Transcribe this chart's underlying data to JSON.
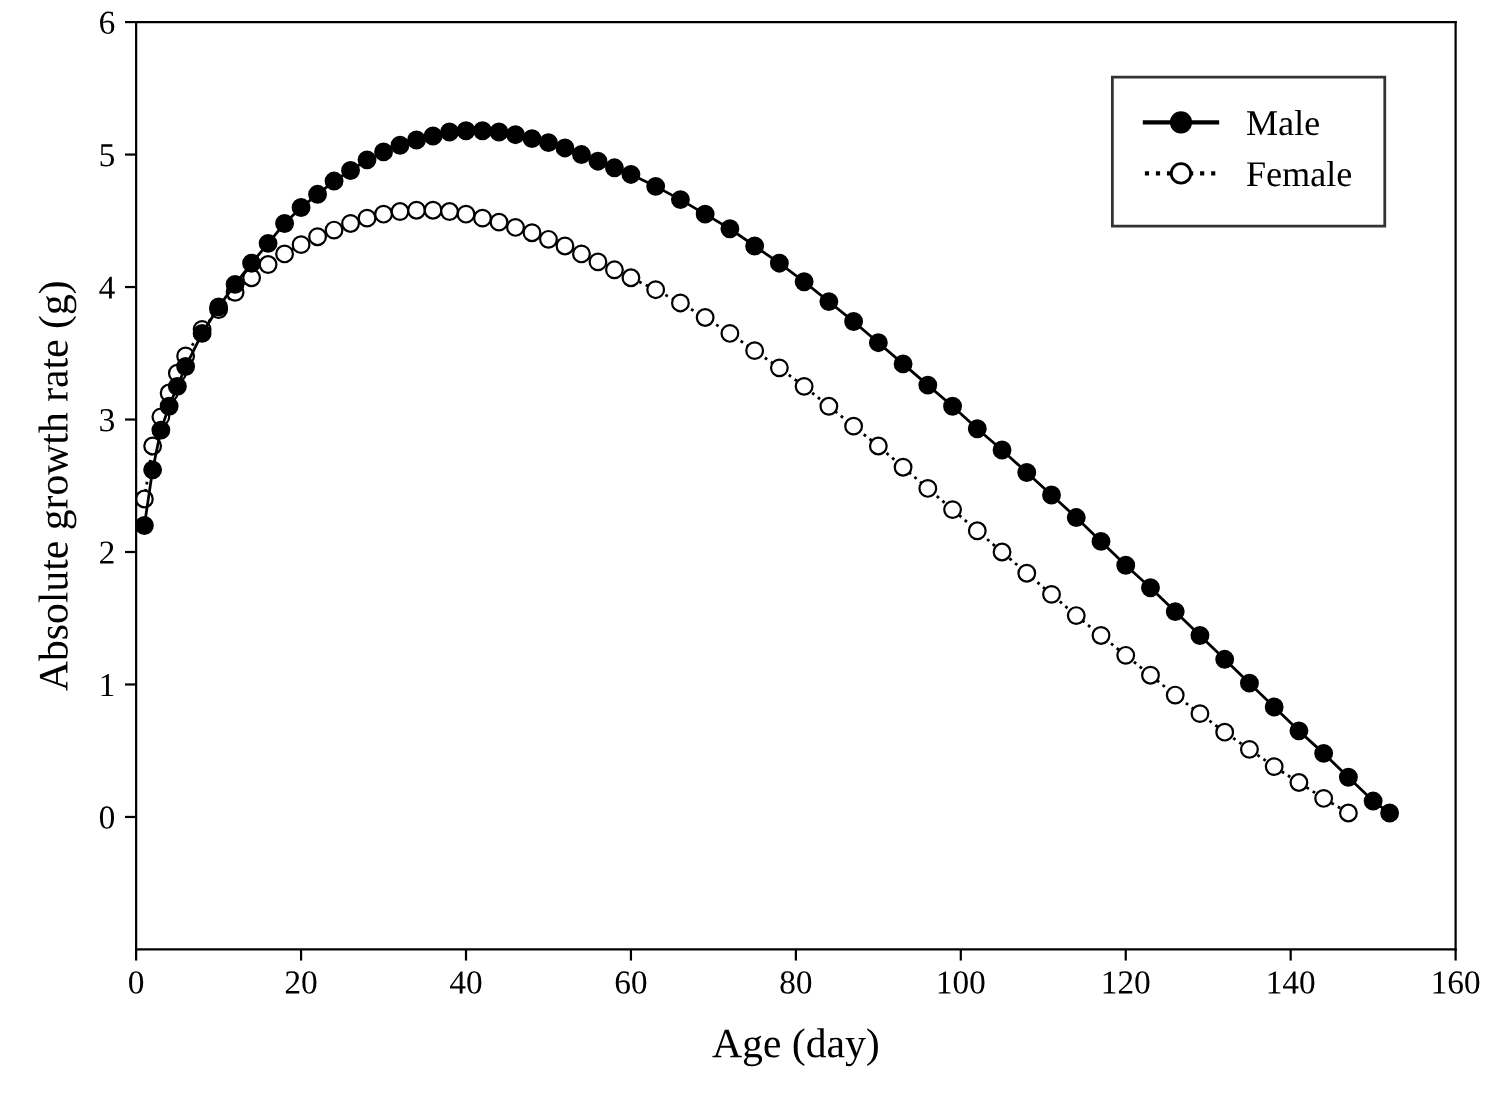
{
  "chart_data": {
    "type": "line",
    "xlabel": "Age (day)",
    "ylabel": "Absolute growth rate (g)",
    "xlim": [
      0,
      160
    ],
    "xticks": [
      0,
      20,
      40,
      60,
      80,
      100,
      120,
      140,
      160
    ],
    "ylim": [
      -1,
      6
    ],
    "yticks": [
      0,
      1,
      2,
      3,
      4,
      5,
      6
    ],
    "grid": false,
    "legend": "top right",
    "marker": "circle",
    "series": [
      {
        "name": "Male",
        "color": "#000000",
        "line_style": "solid",
        "x": [
          1,
          2,
          3,
          4,
          5,
          6,
          8,
          10,
          12,
          14,
          16,
          18,
          20,
          22,
          24,
          26,
          28,
          30,
          32,
          34,
          36,
          38,
          40,
          42,
          44,
          46,
          48,
          50,
          52,
          54,
          56,
          58,
          60,
          63,
          66,
          69,
          72,
          75,
          78,
          81,
          84,
          87,
          90,
          93,
          96,
          99,
          102,
          105,
          108,
          111,
          114,
          117,
          120,
          123,
          126,
          129,
          132,
          135,
          138,
          141,
          144,
          147,
          150,
          152
        ],
        "values": [
          2.2,
          2.62,
          2.92,
          3.1,
          3.25,
          3.4,
          3.65,
          3.85,
          4.02,
          4.18,
          4.33,
          4.48,
          4.6,
          4.7,
          4.8,
          4.88,
          4.96,
          5.02,
          5.07,
          5.11,
          5.14,
          5.17,
          5.18,
          5.18,
          5.17,
          5.15,
          5.12,
          5.09,
          5.05,
          5.0,
          4.95,
          4.9,
          4.85,
          4.76,
          4.66,
          4.55,
          4.44,
          4.31,
          4.18,
          4.04,
          3.89,
          3.74,
          3.58,
          3.42,
          3.26,
          3.1,
          2.93,
          2.77,
          2.6,
          2.43,
          2.26,
          2.08,
          1.9,
          1.73,
          1.55,
          1.37,
          1.19,
          1.01,
          0.83,
          0.65,
          0.48,
          0.3,
          0.12,
          0.03
        ]
      },
      {
        "name": "Female",
        "color": "#000000",
        "line_style": "dotted",
        "x": [
          1,
          2,
          3,
          4,
          5,
          6,
          8,
          10,
          12,
          14,
          16,
          18,
          20,
          22,
          24,
          26,
          28,
          30,
          32,
          34,
          36,
          38,
          40,
          42,
          44,
          46,
          48,
          50,
          52,
          54,
          56,
          58,
          60,
          63,
          66,
          69,
          72,
          75,
          78,
          81,
          84,
          87,
          90,
          93,
          96,
          99,
          102,
          105,
          108,
          111,
          114,
          117,
          120,
          123,
          126,
          129,
          132,
          135,
          138,
          141,
          144,
          147
        ],
        "values": [
          2.4,
          2.8,
          3.02,
          3.2,
          3.35,
          3.48,
          3.68,
          3.83,
          3.96,
          4.07,
          4.17,
          4.25,
          4.32,
          4.38,
          4.43,
          4.48,
          4.52,
          4.55,
          4.57,
          4.58,
          4.58,
          4.57,
          4.55,
          4.52,
          4.49,
          4.45,
          4.41,
          4.36,
          4.31,
          4.25,
          4.19,
          4.13,
          4.07,
          3.98,
          3.88,
          3.77,
          3.65,
          3.52,
          3.39,
          3.25,
          3.1,
          2.95,
          2.8,
          2.64,
          2.48,
          2.32,
          2.16,
          2.0,
          1.84,
          1.68,
          1.52,
          1.37,
          1.22,
          1.07,
          0.92,
          0.78,
          0.64,
          0.51,
          0.38,
          0.26,
          0.14,
          0.03
        ]
      }
    ]
  }
}
